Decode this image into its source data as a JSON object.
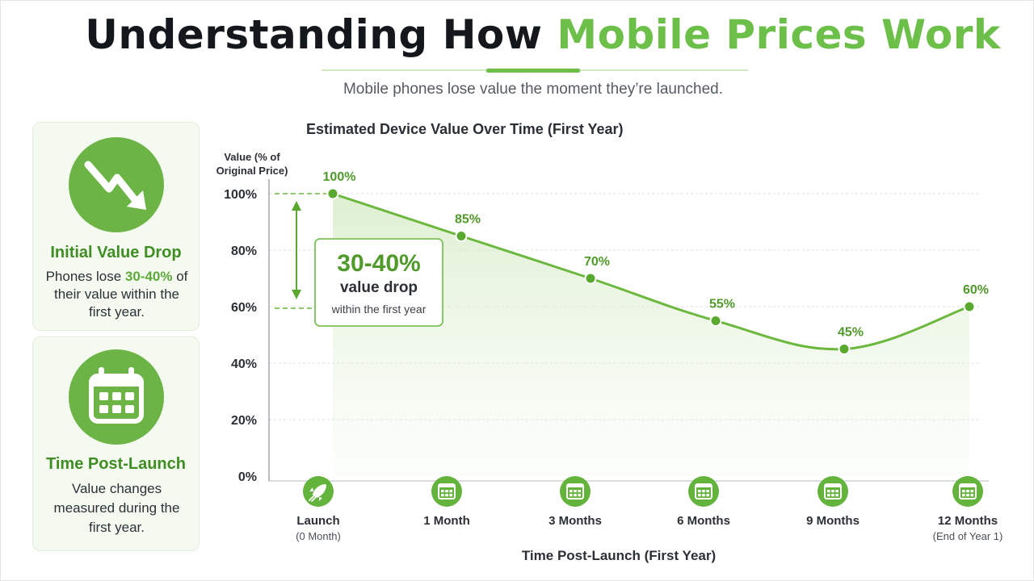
{
  "header": {
    "title_part1": "Understanding How",
    "title_part2": "Mobile Prices Work",
    "subtitle": "Mobile phones lose value the moment they’re launched."
  },
  "cards": [
    {
      "icon": "trending-down-icon",
      "title": "Initial Value Drop",
      "text_pre": "Phones lose ",
      "text_highlight": "30-40%",
      "text_post": " of their value within the first year."
    },
    {
      "icon": "calendar-icon",
      "title": "Time Post-Launch",
      "text": "Value changes measured during the first year."
    }
  ],
  "chart_data": {
    "type": "line",
    "title": "Estimated Device Value Over Time (First Year)",
    "ylabel_line1": "Value (% of",
    "ylabel_line2": "Original Price)",
    "xlabel": "Time Post-Launch (First Year)",
    "ylim": [
      0,
      100
    ],
    "yticks": [
      "0%",
      "20%",
      "40%",
      "60%",
      "80%",
      "100%"
    ],
    "ytick_values": [
      0,
      20,
      40,
      60,
      80,
      100
    ],
    "categories": [
      "Launch",
      "1 Month",
      "3 Months",
      "6 Months",
      "9 Months",
      "12 Months"
    ],
    "category_sublabels": [
      "(0 Month)",
      "",
      "",
      "",
      "",
      "(End of Year 1)"
    ],
    "category_icons": [
      "rocket-icon",
      "calendar-icon",
      "calendar-icon",
      "calendar-icon",
      "calendar-icon",
      "calendar-icon"
    ],
    "values": [
      100,
      85,
      70,
      55,
      45,
      60
    ],
    "data_labels": [
      "100%",
      "85%",
      "70%",
      "55%",
      "45%",
      "60%"
    ],
    "grid": true,
    "fill_under_line": true,
    "colors": {
      "line": "#6cb83f",
      "marker": "#5aa92f",
      "label": "#4f9a2a",
      "grid": "#d9dde0"
    },
    "annotation": {
      "big": "30-40%",
      "mid": "value drop",
      "small": "within the first year",
      "from_value": 100,
      "to_value": 60
    }
  }
}
